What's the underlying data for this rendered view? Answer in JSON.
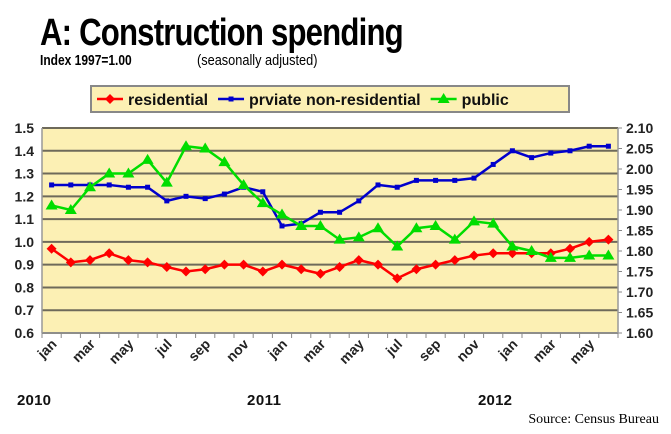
{
  "chart_data": {
    "type": "line",
    "title": "A: Construction spending",
    "subtitle": "Index 1997=1.00",
    "note": "(seasonally adjusted)",
    "source": "Source: Census Bureau",
    "x_tick_labels": [
      "jan",
      "mar",
      "may",
      "jul",
      "sep",
      "nov",
      "jan",
      "mar",
      "may",
      "jul",
      "sep",
      "nov",
      "jan",
      "mar",
      "may"
    ],
    "year_labels": [
      "2010",
      "2011",
      "2012"
    ],
    "x": [
      "2010-01",
      "2010-02",
      "2010-03",
      "2010-04",
      "2010-05",
      "2010-06",
      "2010-07",
      "2010-08",
      "2010-09",
      "2010-10",
      "2010-11",
      "2010-12",
      "2011-01",
      "2011-02",
      "2011-03",
      "2011-04",
      "2011-05",
      "2011-06",
      "2011-07",
      "2011-08",
      "2011-09",
      "2011-10",
      "2011-11",
      "2011-12",
      "2012-01",
      "2012-02",
      "2012-03",
      "2012-04",
      "2012-05",
      "2012-06"
    ],
    "ylim_left": [
      0.6,
      1.5
    ],
    "y_ticks_left": [
      "1.5",
      "1.4",
      "1.3",
      "1.2",
      "1.1",
      "1.0",
      "0.9",
      "0.8",
      "0.7",
      "0.6"
    ],
    "ylim_right": [
      1.6,
      2.1
    ],
    "y_ticks_right": [
      "2.10",
      "2.05",
      "2.00",
      "1.95",
      "1.90",
      "1.85",
      "1.80",
      "1.75",
      "1.70",
      "1.65",
      "1.60"
    ],
    "grid": true,
    "legend_position": "top",
    "background_color": "#fcf0b4",
    "series": [
      {
        "name": "residential",
        "color": "#ff0000",
        "marker": "diamond",
        "values": [
          0.97,
          0.91,
          0.92,
          0.95,
          0.92,
          0.91,
          0.89,
          0.87,
          0.88,
          0.9,
          0.9,
          0.87,
          0.9,
          0.88,
          0.86,
          0.89,
          0.92,
          0.9,
          0.84,
          0.88,
          0.9,
          0.92,
          0.94,
          0.95,
          0.95,
          0.95,
          0.95,
          0.97,
          1.0,
          1.01
        ]
      },
      {
        "name": "prviate non-residential",
        "color": "#0000cc",
        "marker": "square",
        "values": [
          1.25,
          1.25,
          1.25,
          1.25,
          1.24,
          1.24,
          1.18,
          1.2,
          1.19,
          1.21,
          1.24,
          1.22,
          1.07,
          1.08,
          1.13,
          1.13,
          1.18,
          1.25,
          1.24,
          1.27,
          1.27,
          1.27,
          1.28,
          1.34,
          1.4,
          1.37,
          1.39,
          1.4,
          1.42,
          1.42
        ]
      },
      {
        "name": "public",
        "color": "#00dd00",
        "marker": "triangle",
        "values": [
          1.16,
          1.14,
          1.24,
          1.3,
          1.3,
          1.36,
          1.26,
          1.42,
          1.41,
          1.35,
          1.25,
          1.17,
          1.12,
          1.07,
          1.07,
          1.01,
          1.02,
          1.06,
          0.98,
          1.06,
          1.07,
          1.01,
          1.09,
          1.08,
          0.98,
          0.96,
          0.93,
          0.93,
          0.94,
          0.94
        ]
      }
    ]
  }
}
